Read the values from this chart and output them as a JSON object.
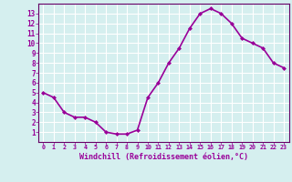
{
  "x": [
    0,
    1,
    2,
    3,
    4,
    5,
    6,
    7,
    8,
    9,
    10,
    11,
    12,
    13,
    14,
    15,
    16,
    17,
    18,
    19,
    20,
    21,
    22,
    23
  ],
  "y": [
    5.0,
    4.5,
    3.0,
    2.5,
    2.5,
    2.0,
    1.0,
    0.8,
    0.8,
    1.2,
    4.5,
    6.0,
    8.0,
    9.5,
    11.5,
    13.0,
    13.5,
    13.0,
    12.0,
    10.5,
    10.0,
    9.5,
    8.0,
    7.5
  ],
  "line_color": "#990099",
  "marker": "D",
  "marker_size": 2,
  "bg_color": "#d5efef",
  "grid_color": "#aadddd",
  "xlabel": "Windchill (Refroidissement éolien,°C)",
  "xlabel_color": "#990099",
  "tick_color": "#990099",
  "ylim": [
    0,
    14
  ],
  "xlim": [
    -0.5,
    23.5
  ],
  "yticks": [
    1,
    2,
    3,
    4,
    5,
    6,
    7,
    8,
    9,
    10,
    11,
    12,
    13
  ],
  "xtick_labels": [
    "0",
    "1",
    "2",
    "3",
    "4",
    "5",
    "6",
    "7",
    "8",
    "9",
    "10",
    "11",
    "12",
    "13",
    "14",
    "15",
    "16",
    "17",
    "18",
    "19",
    "20",
    "21",
    "22",
    "23"
  ],
  "linewidth": 1.2
}
